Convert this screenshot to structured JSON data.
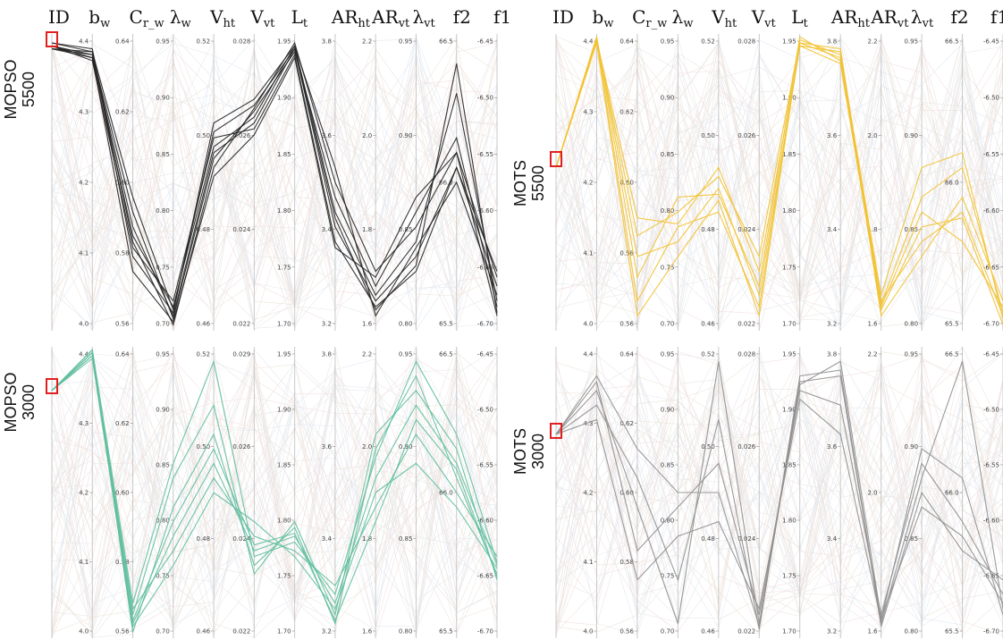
{
  "axis_headers": [
    {
      "main": "ID",
      "sub": ""
    },
    {
      "main": "b",
      "sub": "w"
    },
    {
      "main": "C",
      "sub": "r_w"
    },
    {
      "main": "λ",
      "sub": "w"
    },
    {
      "main": "V",
      "sub": "ht"
    },
    {
      "main": "V",
      "sub": "vt"
    },
    {
      "main": "L",
      "sub": "t"
    },
    {
      "main": "AR",
      "sub": "ht"
    },
    {
      "main": "AR",
      "sub": "vt"
    },
    {
      "main": "λ",
      "sub": "vt"
    },
    {
      "main": "f2",
      "sub": ""
    },
    {
      "main": "f1",
      "sub": ""
    }
  ],
  "colors": {
    "MOPSO 5500": "#222222",
    "MOTS 5500": "#f2c230",
    "MOPSO 3000": "#5fbf9f",
    "MOTS 3000": "#8f8f8f",
    "background_lines": "#d9d9d9",
    "selection_box": "#e02020"
  },
  "chart_data": [
    {
      "type": "parallel-coordinates",
      "title": "MOPSO 5500",
      "title_lines": [
        "MOPSO",
        "5500"
      ],
      "highlight_color": "#222222",
      "axes": [
        {
          "name": "ID",
          "ticks": []
        },
        {
          "name": "b_w",
          "ticks": [
            "4.4",
            "4.3",
            "4.2",
            "4.1",
            "4.0"
          ]
        },
        {
          "name": "C_r_w",
          "ticks": [
            "0.64",
            "0.62",
            "0.60",
            "0.58",
            "0.56"
          ]
        },
        {
          "name": "λ_w",
          "ticks": [
            "0.95",
            "0.90",
            "0.85",
            "0.80",
            "0.75",
            "0.70"
          ]
        },
        {
          "name": "V_ht",
          "ticks": [
            "0.52",
            "0.50",
            "0.48",
            "0.46"
          ]
        },
        {
          "name": "V_vt",
          "ticks": [
            "0.028",
            "0.026",
            "0.024",
            "0.022"
          ]
        },
        {
          "name": "L_t",
          "ticks": [
            "1.95",
            "1.90",
            "1.85",
            "1.80",
            "1.75",
            "1.70"
          ]
        },
        {
          "name": "AR_ht",
          "ticks": [
            "3.8",
            "3.6",
            "3.4",
            "3.2"
          ]
        },
        {
          "name": "AR_vt",
          "ticks": [
            "2.2",
            "2.0",
            "1.8",
            "1.6"
          ]
        },
        {
          "name": "λ_vt",
          "ticks": [
            "0.95",
            "0.90",
            "0.85",
            "0.80"
          ]
        },
        {
          "name": "f2",
          "ticks": [
            "66.5",
            "66.0",
            "65.5"
          ]
        },
        {
          "name": "f1",
          "ticks": [
            "-6.45",
            "-6.50",
            "-6.55",
            "-6.60",
            "-6.65",
            "-6.70"
          ]
        }
      ],
      "highlighted_lines": [
        [
          0.96,
          0.93,
          0.35,
          0.05,
          0.6,
          0.7,
          0.95,
          0.35,
          0.1,
          0.25,
          0.55,
          0.2
        ],
        [
          0.95,
          0.92,
          0.32,
          0.08,
          0.62,
          0.72,
          0.96,
          0.4,
          0.12,
          0.3,
          0.8,
          0.1
        ],
        [
          0.97,
          0.94,
          0.3,
          0.02,
          0.55,
          0.75,
          0.97,
          0.5,
          0.2,
          0.35,
          0.6,
          0.05
        ],
        [
          0.96,
          0.91,
          0.28,
          0.1,
          0.65,
          0.68,
          0.93,
          0.3,
          0.08,
          0.2,
          0.55,
          0.15
        ],
        [
          0.95,
          0.93,
          0.4,
          0.04,
          0.58,
          0.74,
          0.94,
          0.45,
          0.15,
          0.4,
          0.65,
          0.08
        ],
        [
          0.97,
          0.95,
          0.25,
          0.06,
          0.7,
          0.78,
          0.96,
          0.55,
          0.05,
          0.28,
          0.5,
          0.12
        ],
        [
          0.96,
          0.92,
          0.2,
          0.03,
          0.52,
          0.66,
          0.92,
          0.28,
          0.18,
          0.45,
          0.6,
          0.18
        ],
        [
          0.95,
          0.94,
          0.45,
          0.07,
          0.67,
          0.76,
          0.95,
          0.38,
          0.07,
          0.22,
          0.9,
          0.06
        ]
      ]
    },
    {
      "type": "parallel-coordinates",
      "title": "MOTS 5500",
      "title_lines": [
        "MOTS",
        "5500"
      ],
      "highlight_color": "#f2c230",
      "axes": [
        {
          "name": "ID",
          "ticks": []
        },
        {
          "name": "b_w",
          "ticks": [
            "4.4",
            "4.3",
            "4.2",
            "4.1",
            "4.0"
          ]
        },
        {
          "name": "C_r_w",
          "ticks": [
            "0.64",
            "0.62",
            "0.60",
            "0.58",
            "0.56"
          ]
        },
        {
          "name": "λ_w",
          "ticks": [
            "0.95",
            "0.90",
            "0.85",
            "0.80",
            "0.75",
            "0.70"
          ]
        },
        {
          "name": "V_ht",
          "ticks": [
            "0.52",
            "0.50",
            "0.48",
            "0.46"
          ]
        },
        {
          "name": "V_vt",
          "ticks": [
            "0.028",
            "0.026",
            "0.024",
            "0.022"
          ]
        },
        {
          "name": "L_t",
          "ticks": [
            "1.95",
            "1.90",
            "1.85",
            "1.80",
            "1.75",
            "1.70"
          ]
        },
        {
          "name": "AR_ht",
          "ticks": [
            "3.8",
            "3.6",
            "3.4",
            "3.2"
          ]
        },
        {
          "name": "AR_vt",
          "ticks": [
            "2.2",
            "2.0",
            "1.8",
            "1.6"
          ]
        },
        {
          "name": "λ_vt",
          "ticks": [
            "0.95",
            "0.90",
            "0.85",
            "0.80"
          ]
        },
        {
          "name": "f2",
          "ticks": [
            "66.5",
            "66.0",
            "65.5"
          ]
        },
        {
          "name": "f1",
          "ticks": [
            "-6.45",
            "-6.50",
            "-6.55",
            "-6.60",
            "-6.65",
            "-6.70"
          ]
        }
      ],
      "highlighted_lines": [
        [
          0.55,
          0.98,
          0.1,
          0.35,
          0.4,
          0.08,
          0.97,
          0.92,
          0.1,
          0.3,
          0.4,
          0.05
        ],
        [
          0.55,
          0.99,
          0.25,
          0.3,
          0.48,
          0.12,
          0.96,
          0.9,
          0.08,
          0.4,
          0.3,
          0.08
        ],
        [
          0.55,
          0.98,
          0.32,
          0.4,
          0.52,
          0.25,
          0.98,
          0.93,
          0.12,
          0.55,
          0.6,
          0.04
        ],
        [
          0.55,
          0.97,
          0.05,
          0.25,
          0.44,
          0.05,
          0.97,
          0.95,
          0.05,
          0.25,
          0.45,
          0.1
        ],
        [
          0.55,
          0.99,
          0.18,
          0.45,
          0.46,
          0.15,
          0.99,
          0.91,
          0.07,
          0.35,
          0.38,
          0.02
        ],
        [
          0.55,
          0.98,
          0.38,
          0.36,
          0.55,
          0.2,
          0.96,
          0.94,
          0.09,
          0.45,
          0.55,
          0.06
        ]
      ]
    },
    {
      "type": "parallel-coordinates",
      "title": "MOPSO 3000",
      "title_lines": [
        "MOPSO",
        "3000"
      ],
      "highlight_color": "#5fbf9f",
      "axes": [
        {
          "name": "ID",
          "ticks": []
        },
        {
          "name": "b_w",
          "ticks": [
            "4.4",
            "4.3",
            "4.2",
            "4.1",
            "4.0"
          ]
        },
        {
          "name": "C_r_w",
          "ticks": [
            "0.64",
            "0.62",
            "0.60",
            "0.58",
            "0.56"
          ]
        },
        {
          "name": "λ_w",
          "ticks": [
            "0.95",
            "0.90",
            "0.85",
            "0.80",
            "0.75",
            "0.70"
          ]
        },
        {
          "name": "V_ht",
          "ticks": [
            "0.52",
            "0.50",
            "0.48",
            "0.46"
          ]
        },
        {
          "name": "V_vt",
          "ticks": [
            "0.029",
            "0.026",
            "0.024",
            "0.022"
          ]
        },
        {
          "name": "L_t",
          "ticks": [
            "1.95",
            "1.90",
            "1.85",
            "1.80",
            "1.75",
            "1.70"
          ]
        },
        {
          "name": "AR_ht",
          "ticks": [
            "3.8",
            "3.6",
            "3.4",
            "3.2"
          ]
        },
        {
          "name": "AR_vt",
          "ticks": [
            "2.2",
            "2.0",
            "1.8",
            "1.6"
          ]
        },
        {
          "name": "λ_vt",
          "ticks": [
            "0.95",
            "0.90",
            "0.85",
            "0.80"
          ]
        },
        {
          "name": "f2",
          "ticks": [
            "66.5",
            "66.0",
            "65.5"
          ]
        },
        {
          "name": "f1",
          "ticks": [
            "-6.45",
            "-6.50",
            "-6.55",
            "-6.60",
            "-6.65",
            "-6.70"
          ]
        }
      ],
      "highlighted_lines": [
        [
          0.85,
          0.98,
          0.05,
          0.35,
          0.6,
          0.3,
          0.35,
          0.12,
          0.55,
          0.8,
          0.6,
          0.25
        ],
        [
          0.85,
          0.99,
          0.02,
          0.45,
          0.7,
          0.25,
          0.38,
          0.05,
          0.65,
          0.9,
          0.55,
          0.22
        ],
        [
          0.85,
          0.97,
          0.1,
          0.3,
          0.55,
          0.35,
          0.3,
          0.18,
          0.45,
          0.7,
          0.5,
          0.28
        ],
        [
          0.85,
          0.98,
          0.08,
          0.55,
          0.8,
          0.22,
          0.4,
          0.08,
          0.7,
          0.85,
          0.65,
          0.2
        ],
        [
          0.85,
          0.96,
          0.04,
          0.25,
          0.5,
          0.4,
          0.28,
          0.1,
          0.5,
          0.6,
          0.45,
          0.24
        ],
        [
          0.85,
          0.99,
          0.12,
          0.6,
          0.95,
          0.28,
          0.33,
          0.15,
          0.62,
          0.95,
          0.7,
          0.26
        ],
        [
          0.85,
          0.97,
          0.06,
          0.4,
          0.65,
          0.32,
          0.36,
          0.06,
          0.4,
          0.75,
          0.58,
          0.21
        ]
      ]
    },
    {
      "type": "parallel-coordinates",
      "title": "MOTS 3000",
      "title_lines": [
        "MOTS",
        "3000"
      ],
      "highlight_color": "#8f8f8f",
      "axes": [
        {
          "name": "ID",
          "ticks": []
        },
        {
          "name": "b_w",
          "ticks": [
            "4.4",
            "4.3",
            "4.2",
            "4.1",
            "4.0"
          ]
        },
        {
          "name": "C_r_w",
          "ticks": [
            "0.64",
            "0.62",
            "0.60",
            "0.58",
            "0.56"
          ]
        },
        {
          "name": "λ_w",
          "ticks": [
            "0.95",
            "0.90",
            "0.85",
            "0.80",
            "0.75",
            "0.70"
          ]
        },
        {
          "name": "V_ht",
          "ticks": [
            "0.52",
            "0.50",
            "0.48",
            "0.46"
          ]
        },
        {
          "name": "V_vt",
          "ticks": [
            "0.028",
            "0.026",
            "0.024",
            "0.022"
          ]
        },
        {
          "name": "L_t",
          "ticks": [
            "1.95",
            "1.90",
            "1.85",
            "1.80",
            "1.75",
            "1.70"
          ]
        },
        {
          "name": "AR_ht",
          "ticks": [
            "3.8",
            "3.6",
            "3.4",
            "3.2"
          ]
        },
        {
          "name": "AR_vt",
          "ticks": [
            "2.2",
            "2.0",
            "1.6"
          ]
        },
        {
          "name": "λ_vt",
          "ticks": [
            "0.95",
            "0.90",
            "0.85",
            "0.80"
          ]
        },
        {
          "name": "f2",
          "ticks": [
            "66.5",
            "66.0",
            "65.5"
          ]
        },
        {
          "name": "f1",
          "ticks": [
            "-6.45",
            "-6.50",
            "-6.55",
            "-6.60",
            "-6.65",
            "-6.70"
          ]
        }
      ],
      "highlighted_lines": [
        [
          0.7,
          0.85,
          0.45,
          0.05,
          0.95,
          0.05,
          0.88,
          0.9,
          0.05,
          0.55,
          0.95,
          0.1
        ],
        [
          0.7,
          0.88,
          0.3,
          0.45,
          0.6,
          0.08,
          0.85,
          0.8,
          0.08,
          0.6,
          0.4,
          0.15
        ],
        [
          0.7,
          0.8,
          0.55,
          0.2,
          0.75,
          0.03,
          0.9,
          0.92,
          0.04,
          0.5,
          0.3,
          0.2
        ],
        [
          0.7,
          0.75,
          0.2,
          0.35,
          0.4,
          0.1,
          0.82,
          0.7,
          0.06,
          0.65,
          0.55,
          0.08
        ],
        [
          0.7,
          0.9,
          0.65,
          0.5,
          0.5,
          0.04,
          0.87,
          0.95,
          0.07,
          0.45,
          0.35,
          0.12
        ]
      ]
    }
  ]
}
